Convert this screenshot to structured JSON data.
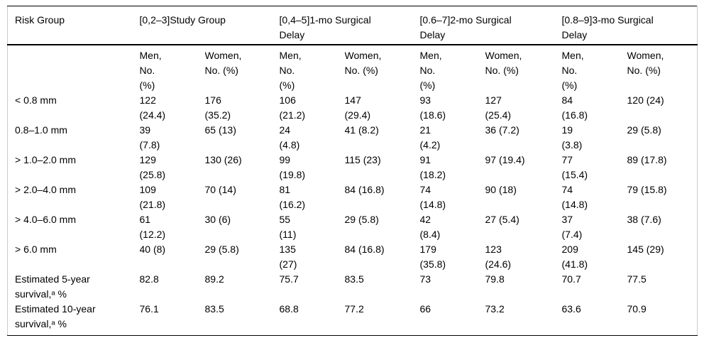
{
  "table": {
    "corner_header": "Risk Group",
    "group_headers": [
      "[0,2–3]Study Group",
      "[0,4–5]1-mo Surgical\nDelay",
      "[0.6–7]2-mo Surgical\nDelay",
      "[0.8–9]3-mo Surgical\nDelay"
    ],
    "sub_headers": {
      "men": "Men,\nNo.\n(%)",
      "women": "Women,\nNo. (%)"
    },
    "rows": [
      {
        "label": "< 0.8 mm",
        "cells": [
          "122\n(24.4)",
          "176\n(35.2)",
          "106\n(21.2)",
          "147\n(29.4)",
          "93\n(18.6)",
          "127\n(25.4)",
          "84\n(16.8)",
          "120 (24)"
        ]
      },
      {
        "label": "0.8–1.0 mm",
        "cells": [
          "39\n(7.8)",
          "65 (13)",
          "24\n(4.8)",
          "41 (8.2)",
          "21\n(4.2)",
          "36 (7.2)",
          "19\n(3.8)",
          "29 (5.8)"
        ]
      },
      {
        "label": "> 1.0–2.0 mm",
        "cells": [
          "129\n(25.8)",
          "130 (26)",
          "99\n(19.8)",
          "115 (23)",
          "91\n(18.2)",
          "97 (19.4)",
          "77\n(15.4)",
          "89 (17.8)"
        ]
      },
      {
        "label": "> 2.0–4.0 mm",
        "cells": [
          "109\n(21.8)",
          "70 (14)",
          "81\n(16.2)",
          "84 (16.8)",
          "74\n(14.8)",
          "90 (18)",
          "74\n(14.8)",
          "79 (15.8)"
        ]
      },
      {
        "label": "> 4.0–6.0 mm",
        "cells": [
          "61\n(12.2)",
          "30 (6)",
          "55\n(11)",
          "29 (5.8)",
          "42\n(8.4)",
          "27 (5.4)",
          "37\n(7.4)",
          "38 (7.6)"
        ]
      },
      {
        "label": "> 6.0 mm",
        "cells": [
          "40 (8)",
          "29 (5.8)",
          "135\n(27)",
          "84 (16.8)",
          "179\n(35.8)",
          "123\n(24.6)",
          "209\n(41.8)",
          "145 (29)"
        ]
      },
      {
        "label": "Estimated 5-year\nsurvival,ᵃ %",
        "cells": [
          "82.8",
          "89.2",
          "75.7",
          "83.5",
          "73",
          "79.8",
          "70.7",
          "77.5"
        ]
      },
      {
        "label": "Estimated 10-year\nsurvival,ᵃ %",
        "cells": [
          "76.1",
          "83.5",
          "68.8",
          "77.2",
          "66",
          "73.2",
          "63.6",
          "70.9"
        ]
      }
    ]
  },
  "colors": {
    "background": "#ffffff",
    "text": "#000000",
    "horizontal_rule": "#000000",
    "frame_border": "#cccccc"
  }
}
